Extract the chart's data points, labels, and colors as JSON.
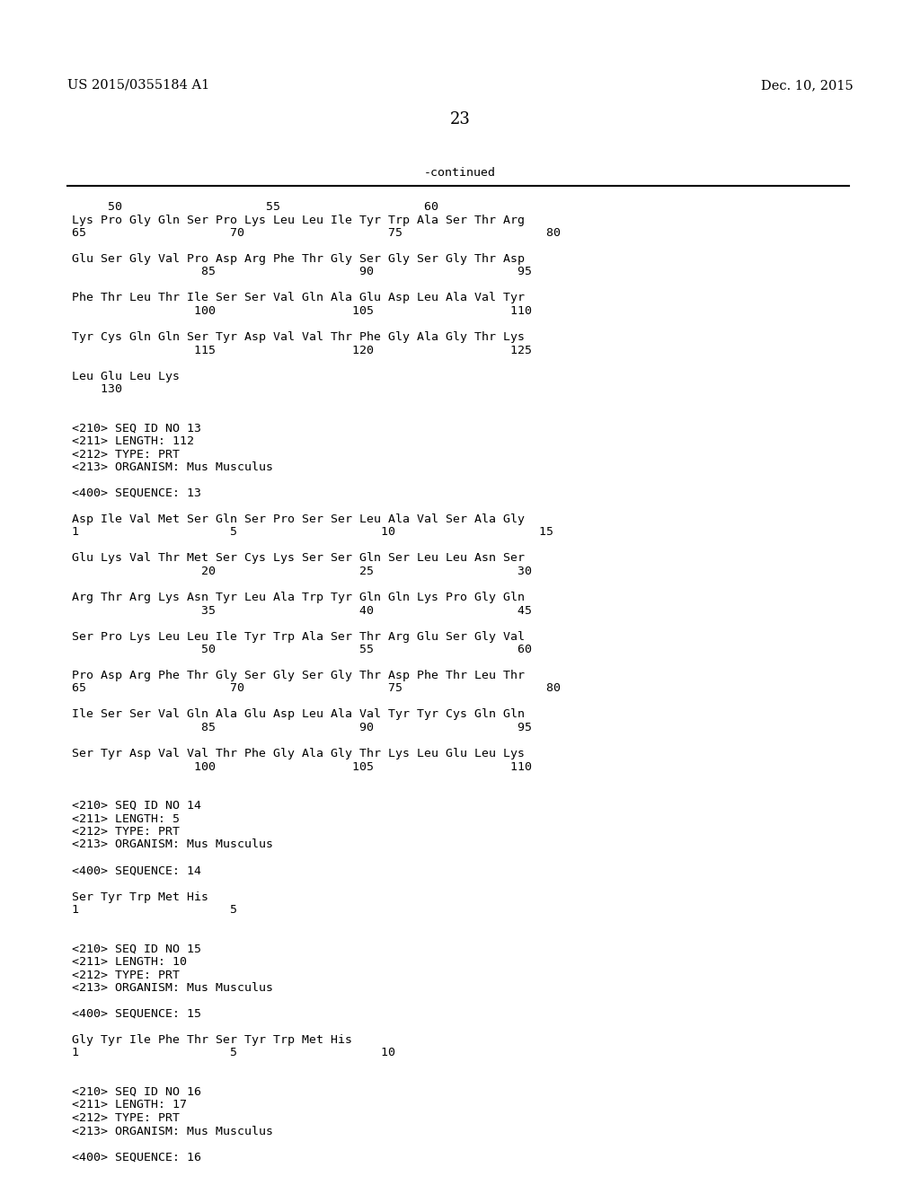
{
  "background_color": "#ffffff",
  "header_left": "US 2015/0355184 A1",
  "header_right": "Dec. 10, 2015",
  "page_number": "23",
  "continued_text": "-continued",
  "lines": [
    "     50                    55                    60",
    "Lys Pro Gly Gln Ser Pro Lys Leu Leu Ile Tyr Trp Ala Ser Thr Arg",
    "65                    70                    75                    80",
    "",
    "Glu Ser Gly Val Pro Asp Arg Phe Thr Gly Ser Gly Ser Gly Thr Asp",
    "                  85                    90                    95",
    "",
    "Phe Thr Leu Thr Ile Ser Ser Val Gln Ala Glu Asp Leu Ala Val Tyr",
    "                 100                   105                   110",
    "",
    "Tyr Cys Gln Gln Ser Tyr Asp Val Val Thr Phe Gly Ala Gly Thr Lys",
    "                 115                   120                   125",
    "",
    "Leu Glu Leu Lys",
    "    130",
    "",
    "",
    "<210> SEQ ID NO 13",
    "<211> LENGTH: 112",
    "<212> TYPE: PRT",
    "<213> ORGANISM: Mus Musculus",
    "",
    "<400> SEQUENCE: 13",
    "",
    "Asp Ile Val Met Ser Gln Ser Pro Ser Ser Leu Ala Val Ser Ala Gly",
    "1                     5                    10                    15",
    "",
    "Glu Lys Val Thr Met Ser Cys Lys Ser Ser Gln Ser Leu Leu Asn Ser",
    "                  20                    25                    30",
    "",
    "Arg Thr Arg Lys Asn Tyr Leu Ala Trp Tyr Gln Gln Lys Pro Gly Gln",
    "                  35                    40                    45",
    "",
    "Ser Pro Lys Leu Leu Ile Tyr Trp Ala Ser Thr Arg Glu Ser Gly Val",
    "                  50                    55                    60",
    "",
    "Pro Asp Arg Phe Thr Gly Ser Gly Ser Gly Thr Asp Phe Thr Leu Thr",
    "65                    70                    75                    80",
    "",
    "Ile Ser Ser Val Gln Ala Glu Asp Leu Ala Val Tyr Tyr Cys Gln Gln",
    "                  85                    90                    95",
    "",
    "Ser Tyr Asp Val Val Thr Phe Gly Ala Gly Thr Lys Leu Glu Leu Lys",
    "                 100                   105                   110",
    "",
    "",
    "<210> SEQ ID NO 14",
    "<211> LENGTH: 5",
    "<212> TYPE: PRT",
    "<213> ORGANISM: Mus Musculus",
    "",
    "<400> SEQUENCE: 14",
    "",
    "Ser Tyr Trp Met His",
    "1                     5",
    "",
    "",
    "<210> SEQ ID NO 15",
    "<211> LENGTH: 10",
    "<212> TYPE: PRT",
    "<213> ORGANISM: Mus Musculus",
    "",
    "<400> SEQUENCE: 15",
    "",
    "Gly Tyr Ile Phe Thr Ser Tyr Trp Met His",
    "1                     5                    10",
    "",
    "",
    "<210> SEQ ID NO 16",
    "<211> LENGTH: 17",
    "<212> TYPE: PRT",
    "<213> ORGANISM: Mus Musculus",
    "",
    "<400> SEQUENCE: 16"
  ]
}
